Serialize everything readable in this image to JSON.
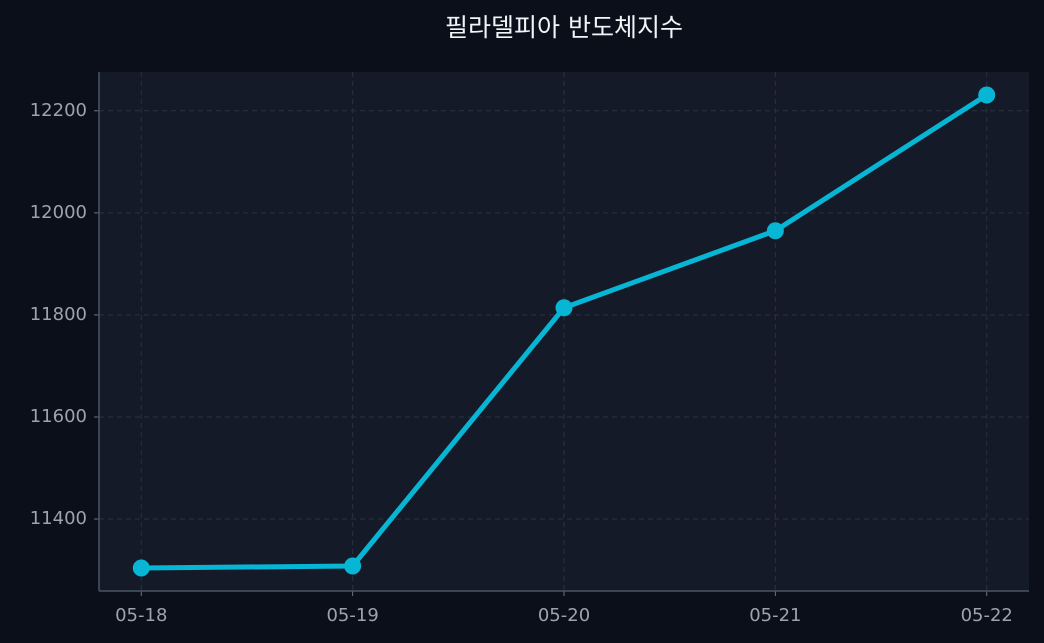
{
  "chart_data": {
    "type": "line",
    "title": "필라델피아 반도체지수",
    "categories": [
      "05-18",
      "05-19",
      "05-20",
      "05-21",
      "05-22"
    ],
    "series": [
      {
        "name": "필라델피아 반도체지수",
        "color": "#06b6d4",
        "values": [
          11304,
          11308,
          11814,
          11965,
          12231
        ]
      }
    ],
    "ylim": [
      11259,
      12276
    ],
    "yticks": [
      11400,
      11600,
      11800,
      12000,
      12200
    ],
    "grid": true
  }
}
